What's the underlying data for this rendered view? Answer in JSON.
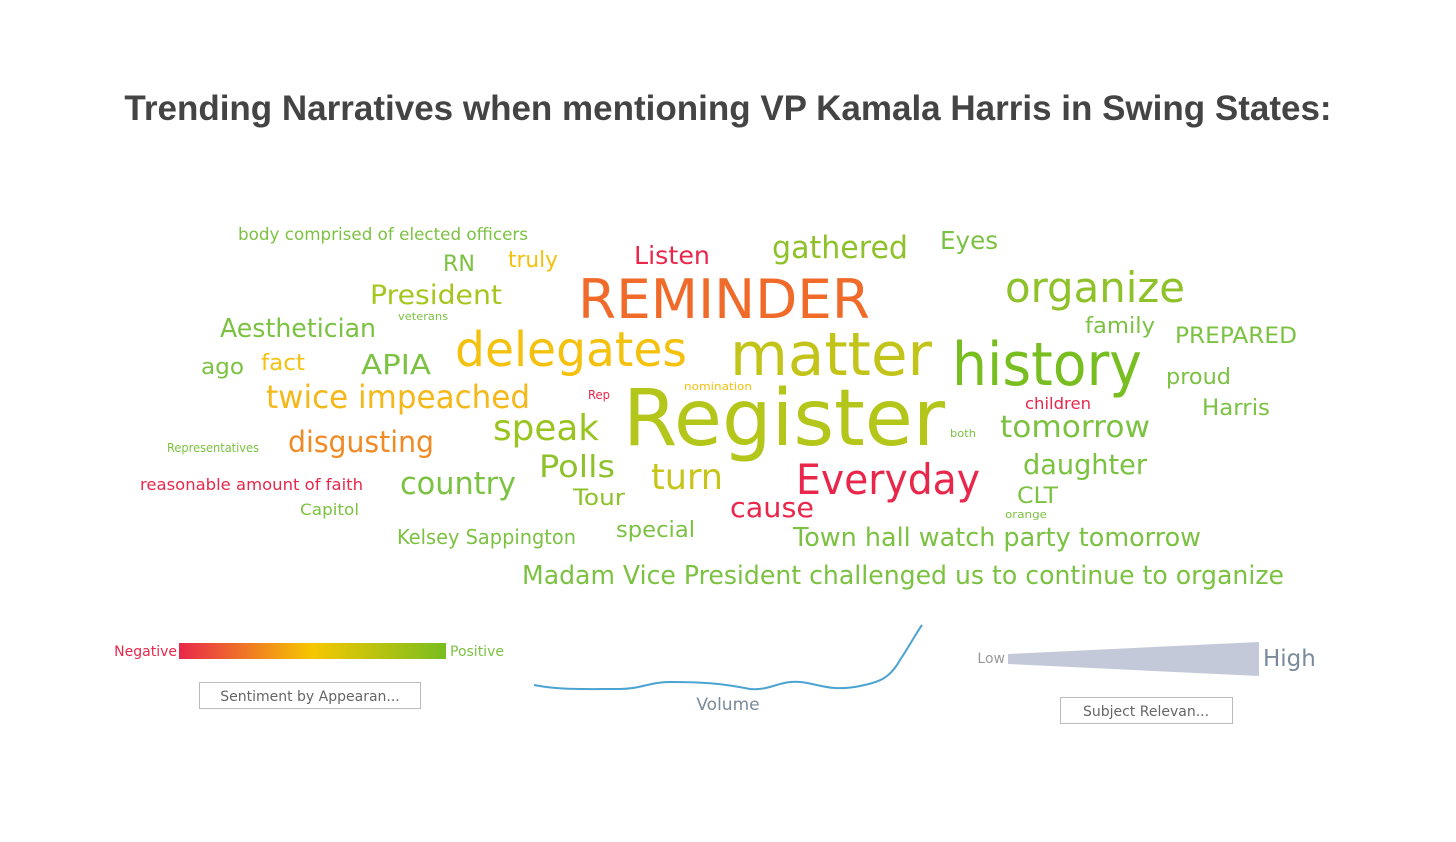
{
  "title": "Trending Narratives when mentioning VP Kamala Harris in Swing States:",
  "words": [
    {
      "text": "body comprised of elected officers",
      "color": "#7cc242"
    },
    {
      "text": "RN",
      "color": "#7cc242"
    },
    {
      "text": "truly",
      "color": "#f4c10f"
    },
    {
      "text": "Listen",
      "color": "#e8274b"
    },
    {
      "text": "gathered",
      "color": "#8fc22a"
    },
    {
      "text": "Eyes",
      "color": "#7cc242"
    },
    {
      "text": "President",
      "color": "#a5c61d"
    },
    {
      "text": "REMINDER",
      "color": "#f06a2a"
    },
    {
      "text": "organize",
      "color": "#8fc22a"
    },
    {
      "text": "Aesthetician",
      "color": "#7cc242"
    },
    {
      "text": "veterans",
      "color": "#7cc242"
    },
    {
      "text": "family",
      "color": "#7cc242"
    },
    {
      "text": "PREPARED",
      "color": "#7cc242"
    },
    {
      "text": "delegates",
      "color": "#f4c10f"
    },
    {
      "text": "matter",
      "color": "#c3c41a"
    },
    {
      "text": "history",
      "color": "#78be20"
    },
    {
      "text": "ago",
      "color": "#7cc242"
    },
    {
      "text": "fact",
      "color": "#f4c10f"
    },
    {
      "text": "APIA",
      "color": "#7cc242"
    },
    {
      "text": "proud",
      "color": "#7cc242"
    },
    {
      "text": "nomination",
      "color": "#f4c10f"
    },
    {
      "text": "Rep",
      "color": "#e8274b"
    },
    {
      "text": "twice impeached",
      "color": "#f4b81a"
    },
    {
      "text": "Register",
      "color": "#b4c61a"
    },
    {
      "text": "children",
      "color": "#e8274b"
    },
    {
      "text": "Harris",
      "color": "#7cc242"
    },
    {
      "text": "speak",
      "color": "#9ac41f"
    },
    {
      "text": "both",
      "color": "#7cc242"
    },
    {
      "text": "tomorrow",
      "color": "#7cc242"
    },
    {
      "text": "Representatives",
      "color": "#7cc242"
    },
    {
      "text": "disgusting",
      "color": "#f08a24"
    },
    {
      "text": "Polls",
      "color": "#8fc22a"
    },
    {
      "text": "turn",
      "color": "#c7c41a"
    },
    {
      "text": "Everyday",
      "color": "#e8274b"
    },
    {
      "text": "daughter",
      "color": "#7cc242"
    },
    {
      "text": "reasonable amount of faith",
      "color": "#e8274b"
    },
    {
      "text": "country",
      "color": "#7cc242"
    },
    {
      "text": "Tour",
      "color": "#8fc22a"
    },
    {
      "text": "CLT",
      "color": "#7cc242"
    },
    {
      "text": "cause",
      "color": "#e8274b"
    },
    {
      "text": "orange",
      "color": "#7cc242"
    },
    {
      "text": "Capitol",
      "color": "#7cc242"
    },
    {
      "text": "special",
      "color": "#7cc242"
    },
    {
      "text": "Kelsey Sappington",
      "color": "#7cc242"
    },
    {
      "text": "Town hall watch party tomorrow",
      "color": "#7cc242"
    },
    {
      "text": "Madam Vice President challenged us to continue to organize",
      "color": "#7cc242"
    }
  ],
  "legend": {
    "sentiment": {
      "negative": "Negative",
      "positive": "Positive",
      "button": "Sentiment by Appearan..."
    },
    "volume": {
      "label": "Volume"
    },
    "relevance": {
      "low": "Low",
      "high": "High",
      "button": "Subject Relevan..."
    }
  }
}
